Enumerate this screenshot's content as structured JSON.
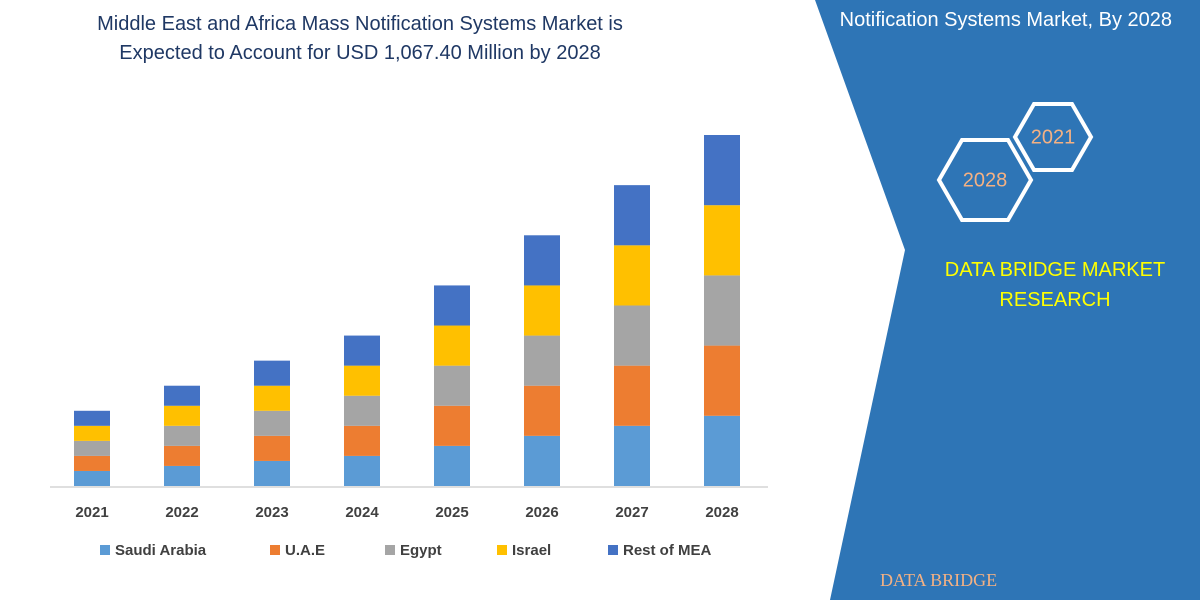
{
  "chart_data": {
    "type": "stacked-bar",
    "title": "Middle East and Africa Mass Notification Systems Market is Expected to Account for USD 1,067.40 Million by 2028",
    "categories": [
      "2021",
      "2022",
      "2023",
      "2024",
      "2025",
      "2026",
      "2027",
      "2028"
    ],
    "series": [
      {
        "name": "Saudi Arabia",
        "color": "#5b9bd5",
        "values": [
          15,
          20,
          25,
          30,
          40,
          50,
          60,
          70
        ]
      },
      {
        "name": "U.A.E",
        "color": "#ed7d31",
        "values": [
          15,
          20,
          25,
          30,
          40,
          50,
          60,
          70
        ]
      },
      {
        "name": "Egypt",
        "color": "#a5a5a5",
        "values": [
          15,
          20,
          25,
          30,
          40,
          50,
          60,
          70
        ]
      },
      {
        "name": "Israel",
        "color": "#ffc000",
        "values": [
          15,
          20,
          25,
          30,
          40,
          50,
          60,
          70
        ]
      },
      {
        "name": "Rest of MEA",
        "color": "#4472c4",
        "values": [
          15,
          20,
          25,
          30,
          40,
          50,
          60,
          70
        ]
      }
    ]
  },
  "panel": {
    "heading": "Notification Systems Market, By 2028",
    "badges": [
      "2021",
      "2028"
    ],
    "brand": "DATA BRIDGE MARKET RESEARCH",
    "logo": "DATA BRIDGE"
  }
}
